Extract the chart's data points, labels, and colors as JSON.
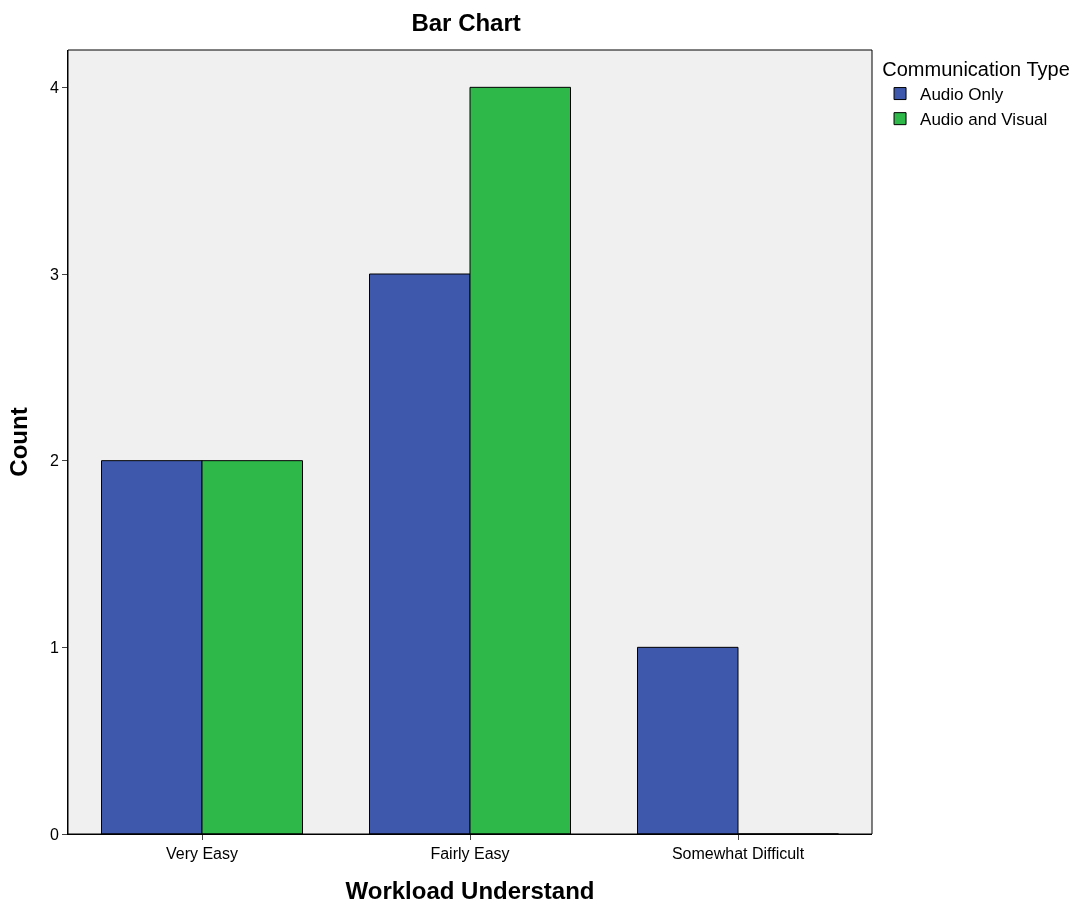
{
  "chart_data": {
    "type": "bar",
    "title": "Bar Chart",
    "xlabel": "Workload Understand",
    "ylabel": "Count",
    "legend_title": "Communication Type",
    "categories": [
      "Very Easy",
      "Fairly Easy",
      "Somewhat Difficult"
    ],
    "series": [
      {
        "name": "Audio Only",
        "color": "#3e58ac",
        "values": [
          2,
          3,
          1
        ]
      },
      {
        "name": "Audio and Visual",
        "color": "#2eb84a",
        "values": [
          2,
          4,
          0
        ]
      }
    ],
    "ylim": [
      0,
      4.2
    ],
    "yticks": [
      0,
      1,
      2,
      3,
      4
    ],
    "grid": false,
    "legend": "top right"
  }
}
